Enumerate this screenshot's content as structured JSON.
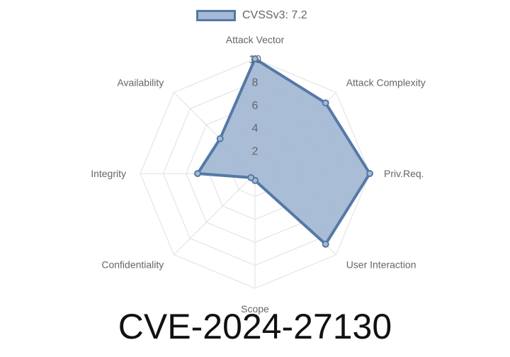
{
  "chart_data": {
    "type": "radar",
    "legend": {
      "position": "top"
    },
    "axes": [
      "Attack Vector",
      "Attack Complexity",
      "Priv.Req.",
      "User Interaction",
      "Scope",
      "Confidentiality",
      "Integrity",
      "Availability"
    ],
    "series": [
      {
        "name": "CVSSv3: 7.2",
        "values": [
          10,
          8.7,
          10,
          8.7,
          0.6,
          0.5,
          5,
          4.3
        ]
      }
    ],
    "r_range": [
      0,
      10
    ],
    "ticks": [
      2,
      4,
      6,
      8,
      10
    ],
    "colors": {
      "fill": "#a5b9d4",
      "stroke": "#5479a7",
      "grid": "#e0e0e0",
      "label": "#666666"
    }
  },
  "title": "CVE-2024-27130"
}
